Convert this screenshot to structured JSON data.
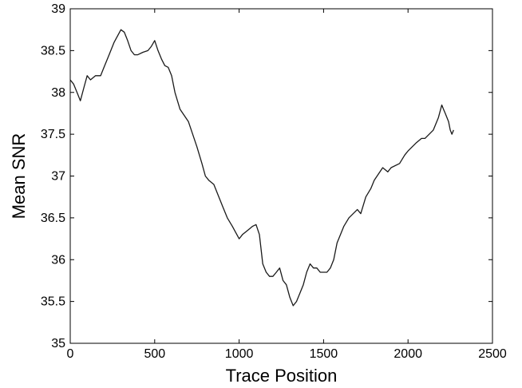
{
  "chart_data": {
    "type": "line",
    "title": "",
    "xlabel": "Trace Position",
    "ylabel": "Mean SNR",
    "xlim": [
      0,
      2500
    ],
    "ylim": [
      35,
      39
    ],
    "xticks": [
      0,
      500,
      1000,
      1500,
      2000,
      2500
    ],
    "yticks": [
      35,
      35.5,
      36,
      36.5,
      37,
      37.5,
      38,
      38.5,
      39
    ],
    "xtick_labels": [
      "0",
      "500",
      "1000",
      "1500",
      "2000",
      "2500"
    ],
    "ytick_labels": [
      "35",
      "35.5",
      "36",
      "36.5",
      "37",
      "37.5",
      "38",
      "38.5",
      "39"
    ],
    "grid": false,
    "line_color": "#1a1a1a",
    "series": [
      {
        "x": [
          0,
          20,
          40,
          60,
          80,
          100,
          120,
          150,
          180,
          200,
          230,
          260,
          300,
          320,
          340,
          360,
          380,
          400,
          430,
          460,
          480,
          500,
          520,
          540,
          560,
          580,
          600,
          620,
          650,
          700,
          750,
          780,
          800,
          820,
          850,
          880,
          900,
          930,
          960,
          1000,
          1020,
          1050,
          1080,
          1100,
          1120,
          1140,
          1160,
          1180,
          1200,
          1220,
          1240,
          1260,
          1280,
          1300,
          1320,
          1340,
          1360,
          1380,
          1400,
          1420,
          1440,
          1460,
          1480,
          1500,
          1520,
          1540,
          1560,
          1580,
          1600,
          1620,
          1650,
          1700,
          1720,
          1750,
          1780,
          1800,
          1850,
          1880,
          1900,
          1950,
          1980,
          2000,
          2050,
          2080,
          2100,
          2150,
          2180,
          2200,
          2210,
          2220,
          2240,
          2250,
          2260,
          2270
        ],
        "y": [
          38.15,
          38.1,
          38.0,
          37.9,
          38.05,
          38.2,
          38.15,
          38.2,
          38.2,
          38.3,
          38.45,
          38.6,
          38.75,
          38.72,
          38.62,
          38.5,
          38.45,
          38.45,
          38.48,
          38.5,
          38.55,
          38.62,
          38.5,
          38.4,
          38.32,
          38.3,
          38.2,
          38.0,
          37.8,
          37.65,
          37.35,
          37.15,
          37.0,
          36.95,
          36.9,
          36.75,
          36.65,
          36.5,
          36.4,
          36.25,
          36.3,
          36.35,
          36.4,
          36.42,
          36.3,
          35.95,
          35.85,
          35.8,
          35.8,
          35.85,
          35.9,
          35.75,
          35.7,
          35.55,
          35.45,
          35.5,
          35.6,
          35.7,
          35.85,
          35.95,
          35.9,
          35.9,
          35.85,
          35.85,
          35.85,
          35.9,
          36.0,
          36.2,
          36.3,
          36.4,
          36.5,
          36.6,
          36.55,
          36.75,
          36.85,
          36.95,
          37.1,
          37.05,
          37.1,
          37.15,
          37.25,
          37.3,
          37.4,
          37.45,
          37.45,
          37.55,
          37.7,
          37.85,
          37.8,
          37.75,
          37.65,
          37.55,
          37.5,
          37.55
        ]
      }
    ]
  }
}
